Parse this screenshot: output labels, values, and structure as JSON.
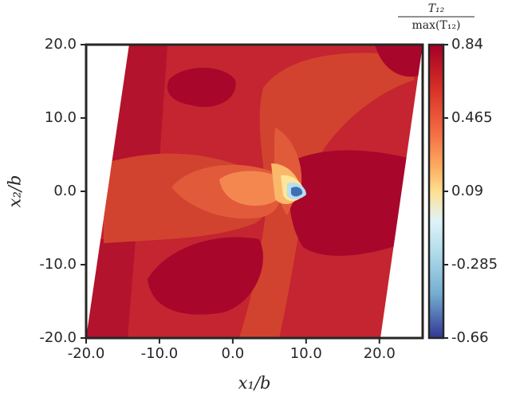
{
  "chart_data": {
    "type": "contour",
    "xlabel": "x₁/b",
    "ylabel": "x₂/b",
    "colorbar_label_numerator": "T₁₂",
    "colorbar_label_denominator": "max(T₁₂)",
    "xlim": [
      -20,
      25.9
    ],
    "ylim": [
      -20,
      20
    ],
    "xticks": [
      {
        "value": -20,
        "label": "-20.0"
      },
      {
        "value": -10,
        "label": "-10.0"
      },
      {
        "value": 0,
        "label": "0.0"
      },
      {
        "value": 10,
        "label": "10.0"
      },
      {
        "value": 20,
        "label": "20.0"
      }
    ],
    "yticks": [
      {
        "value": -20,
        "label": "-20.0"
      },
      {
        "value": -10,
        "label": "-10.0"
      },
      {
        "value": 0,
        "label": "0.0"
      },
      {
        "value": 10,
        "label": "10.0"
      },
      {
        "value": 20,
        "label": "20.0"
      }
    ],
    "colorbar_lim": [
      -0.66,
      0.84
    ],
    "colorbar_ticks": [
      0.84,
      0.465,
      0.09,
      -0.285,
      -0.66
    ],
    "colormap": "RdYlBu"
  }
}
